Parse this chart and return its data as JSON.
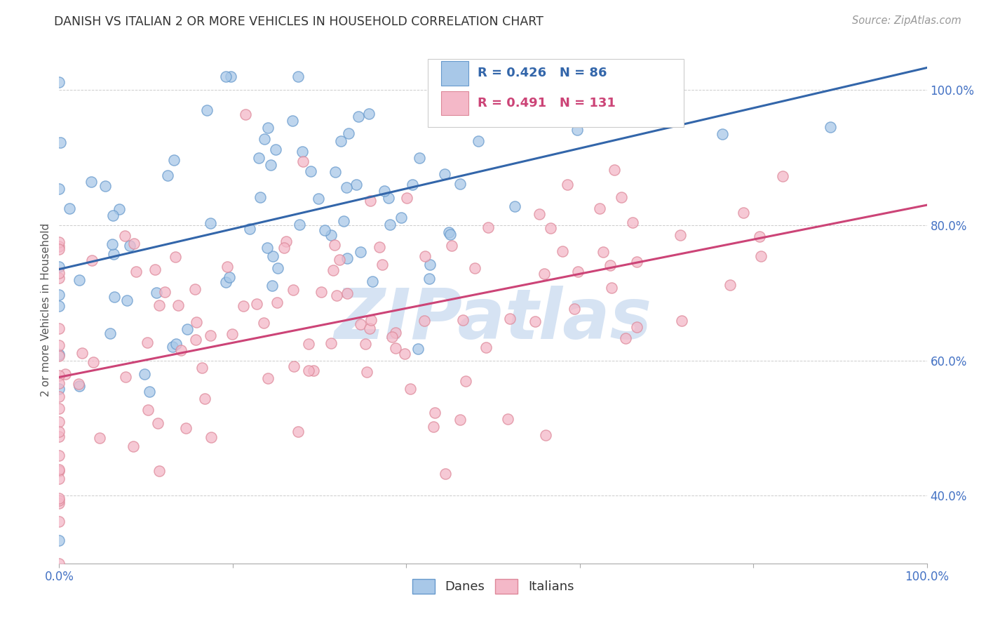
{
  "title": "DANISH VS ITALIAN 2 OR MORE VEHICLES IN HOUSEHOLD CORRELATION CHART",
  "source": "Source: ZipAtlas.com",
  "ylabel": "2 or more Vehicles in Household",
  "legend_R_Danish": "R = 0.426",
  "legend_N_Danish": "N = 86",
  "legend_R_Italian": "R = 0.491",
  "legend_N_Italian": "N = 131",
  "color_danish_fill": "#a8c8e8",
  "color_danish_edge": "#6699cc",
  "color_danish_line": "#3366aa",
  "color_italian_fill": "#f4b8c8",
  "color_italian_edge": "#dd8899",
  "color_italian_line": "#cc4477",
  "color_axis_tick": "#4472c4",
  "color_title": "#333333",
  "color_source": "#999999",
  "color_grid": "#cccccc",
  "watermark_color": "#c5d8ef",
  "watermark_text": "ZIPatlas",
  "R_danish": 0.426,
  "N_danish": 86,
  "R_italian": 0.491,
  "N_italian": 131,
  "xlim": [
    0.0,
    1.0
  ],
  "ylim": [
    0.3,
    1.05
  ],
  "yticks": [
    0.4,
    0.6,
    0.8,
    1.0
  ],
  "ytick_labels": [
    "40.0%",
    "60.0%",
    "80.0%",
    "100.0%"
  ],
  "xticks": [
    0.0,
    0.2,
    0.4,
    0.6,
    0.8,
    1.0
  ],
  "xtick_labels": [
    "0.0%",
    "",
    "",
    "",
    "",
    "100.0%"
  ],
  "background_color": "#ffffff",
  "scatter_size": 120,
  "scatter_alpha": 0.75,
  "scatter_linewidth": 1.0
}
